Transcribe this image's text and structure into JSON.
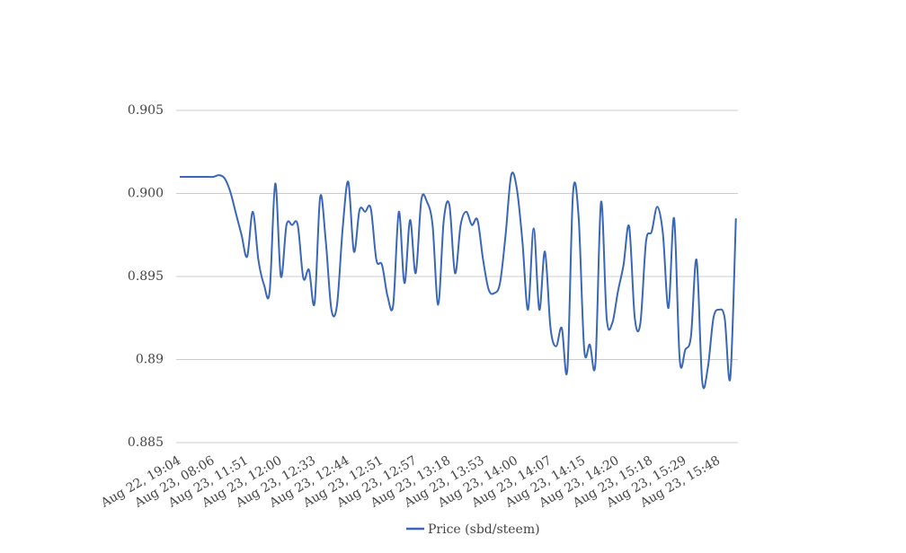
{
  "chart_data": {
    "type": "line",
    "categories": [
      "Aug 22, 19:04",
      null,
      null,
      null,
      null,
      null,
      "Aug 23, 08:06",
      null,
      null,
      null,
      null,
      null,
      "Aug 23, 11:51",
      null,
      null,
      null,
      null,
      null,
      "Aug 23, 12:00",
      null,
      null,
      null,
      null,
      null,
      "Aug 23, 12:33",
      null,
      null,
      null,
      null,
      null,
      "Aug 23, 12:44",
      null,
      null,
      null,
      null,
      null,
      "Aug 23, 12:51",
      null,
      null,
      null,
      null,
      null,
      "Aug 23, 12:57",
      null,
      null,
      null,
      null,
      null,
      "Aug 23, 13:18",
      null,
      null,
      null,
      null,
      null,
      "Aug 23, 13:53",
      null,
      null,
      null,
      null,
      null,
      "Aug 23, 14:00",
      null,
      null,
      null,
      null,
      null,
      "Aug 23, 14:07",
      null,
      null,
      null,
      null,
      null,
      "Aug 23, 14:15",
      null,
      null,
      null,
      null,
      null,
      "Aug 23, 14:20",
      null,
      null,
      null,
      null,
      null,
      "Aug 23, 15:18",
      null,
      null,
      null,
      null,
      null,
      "Aug 23, 15:29",
      null,
      null,
      null,
      null,
      null,
      "Aug 23, 15:48",
      null,
      null,
      null
    ],
    "series": [
      {
        "name": "Price (sbd/steem)",
        "color": "#3a66b8",
        "values": [
          0.901,
          0.901,
          0.901,
          0.901,
          0.901,
          0.901,
          0.901,
          0.9011,
          0.9009,
          0.9001,
          0.8988,
          0.8975,
          0.8962,
          0.8989,
          0.896,
          0.8945,
          0.8941,
          0.9006,
          0.895,
          0.8981,
          0.8981,
          0.8981,
          0.8949,
          0.8954,
          0.8934,
          0.8998,
          0.8971,
          0.893,
          0.8933,
          0.8979,
          0.9007,
          0.8965,
          0.899,
          0.8989,
          0.8991,
          0.896,
          0.8957,
          0.8938,
          0.8933,
          0.8989,
          0.8946,
          0.8984,
          0.8952,
          0.8996,
          0.8995,
          0.8981,
          0.8933,
          0.8984,
          0.8993,
          0.8952,
          0.8981,
          0.8989,
          0.8981,
          0.8984,
          0.896,
          0.8942,
          0.894,
          0.8946,
          0.8975,
          0.9011,
          0.9003,
          0.8971,
          0.893,
          0.8979,
          0.893,
          0.8965,
          0.8919,
          0.8908,
          0.8919,
          0.8894,
          0.9,
          0.8986,
          0.8906,
          0.8909,
          0.8898,
          0.8995,
          0.8925,
          0.8922,
          0.8941,
          0.8957,
          0.898,
          0.8925,
          0.8922,
          0.8971,
          0.8977,
          0.8992,
          0.8976,
          0.8931,
          0.8985,
          0.89,
          0.8906,
          0.8914,
          0.896,
          0.8887,
          0.8895,
          0.8925,
          0.893,
          0.8925,
          0.8889,
          0.8985
        ]
      }
    ],
    "ylim": [
      0.885,
      0.905
    ],
    "yticks": [
      0.885,
      0.89,
      0.895,
      {
        "value": 0.9,
        "label": "0.900"
      },
      0.905
    ],
    "grid": true,
    "legend": "bottom"
  }
}
